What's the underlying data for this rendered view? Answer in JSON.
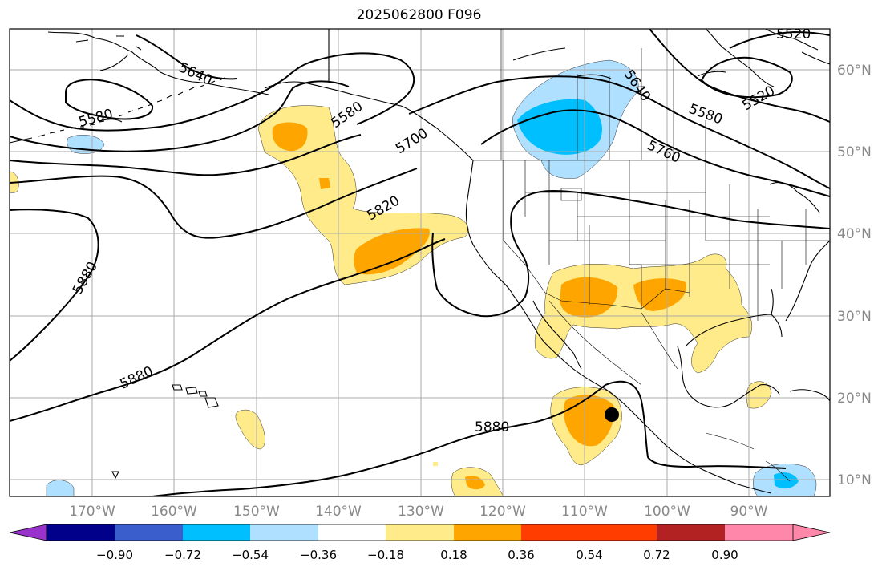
{
  "title": "2025062800 F096",
  "map": {
    "lon_ticks": [
      "170°W",
      "160°W",
      "150°W",
      "140°W",
      "130°W",
      "120°W",
      "110°W",
      "100°W",
      "90°W"
    ],
    "lat_ticks": [
      "60°N",
      "50°N",
      "40°N",
      "30°N",
      "20°N",
      "10°N"
    ],
    "contour_labels": [
      "5640",
      "5580",
      "5580",
      "5700",
      "5820",
      "5880",
      "5880",
      "5880",
      "5640",
      "5760",
      "5580",
      "5520",
      "5520"
    ],
    "storm_marker": "filled-circle"
  },
  "colorbar": {
    "tick_labels": [
      "−0.90",
      "−0.72",
      "−0.54",
      "−0.36",
      "−0.18",
      "0.18",
      "0.36",
      "0.54",
      "0.72",
      "0.90"
    ],
    "colors": [
      "#9932cc",
      "#00008b",
      "#3a5fcd",
      "#00bfff",
      "#b0e0ff",
      "#ffffff",
      "#ffeb8a",
      "#ffa500",
      "#ff3d00",
      "#b22222",
      "#ff88aa"
    ]
  }
}
